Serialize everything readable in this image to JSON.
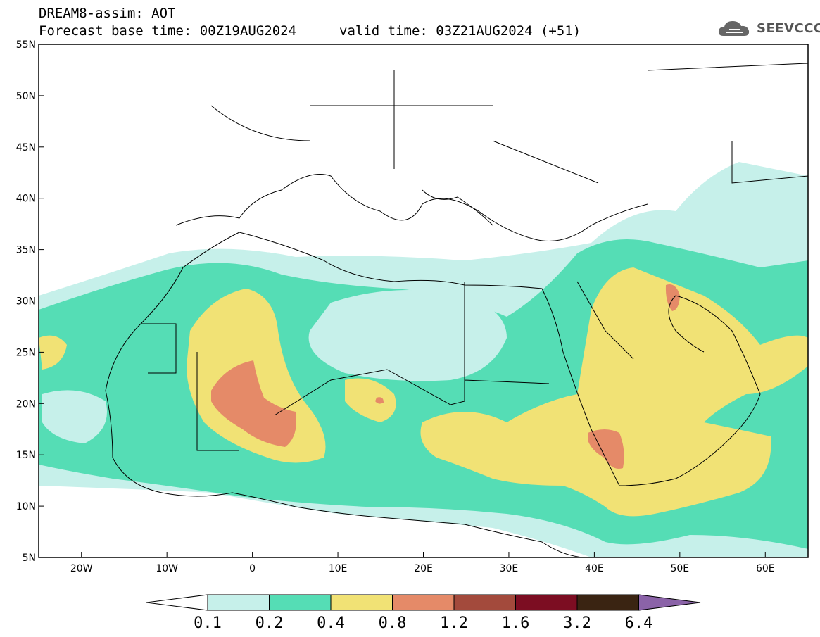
{
  "header": {
    "title": "DREAM8-assim: AOT",
    "base_time": "Forecast base time: 00Z19AUG2024",
    "valid_time": "valid time: 03Z21AUG2024 (+51)"
  },
  "logo": {
    "text": "SEEVCCC",
    "icon": "cloud-icon"
  },
  "map": {
    "lon_range": [
      -25,
      65
    ],
    "lat_range": [
      5,
      55
    ],
    "x_ticks": [
      "20W",
      "10W",
      "0",
      "10E",
      "20E",
      "30E",
      "40E",
      "50E",
      "60E"
    ],
    "y_ticks": [
      "5N",
      "10N",
      "15N",
      "20N",
      "25N",
      "30N",
      "35N",
      "40N",
      "45N",
      "50N",
      "55N"
    ]
  },
  "colorbar": {
    "labels": [
      "0.1",
      "0.2",
      "0.4",
      "0.8",
      "1.2",
      "1.6",
      "3.2",
      "6.4"
    ],
    "colors": [
      "#ffffff",
      "#c6f0ea",
      "#55ddb5",
      "#f1e275",
      "#e58a68",
      "#a34a3c",
      "#7c0d22",
      "#3a2412",
      "#8b63a8"
    ]
  }
}
